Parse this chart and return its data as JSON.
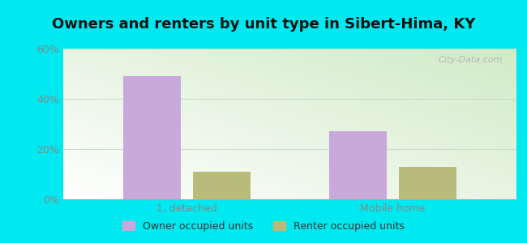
{
  "title": "Owners and renters by unit type in Sibert-Hima, KY",
  "categories": [
    "1, detached",
    "Mobile home"
  ],
  "owner_values": [
    49,
    27
  ],
  "renter_values": [
    11,
    13
  ],
  "owner_color": "#c9a8dc",
  "renter_color": "#b8bb7a",
  "owner_label": "Owner occupied units",
  "renter_label": "Renter occupied units",
  "ylim": [
    0,
    60
  ],
  "yticks": [
    0,
    20,
    40,
    60
  ],
  "ytick_labels": [
    "0%",
    "20%",
    "40%",
    "60%"
  ],
  "bar_width": 0.28,
  "background_color": "#00e8f0",
  "bg_color_topleft": "#e8f8e8",
  "bg_color_bottomright": "#d0e8b0",
  "bg_color_topright": "#cce8cc",
  "bg_color_bottomleft": "#e8fce8",
  "watermark": "City-Data.com",
  "title_fontsize": 13,
  "tick_fontsize": 9,
  "legend_fontsize": 9,
  "grid_color": "#ccddcc",
  "tick_color": "#888888"
}
